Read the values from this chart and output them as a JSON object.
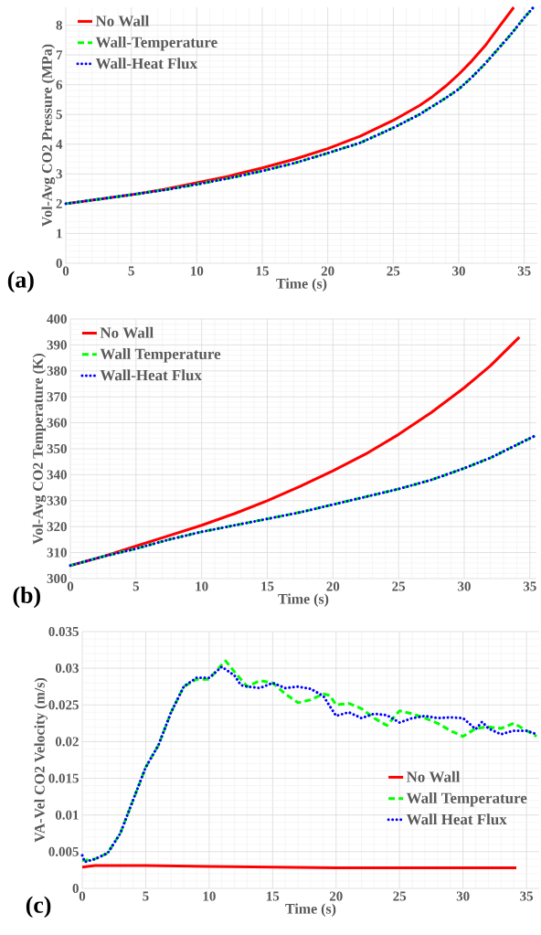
{
  "chart_data": [
    {
      "type": "line",
      "xlabel": "Time (s)",
      "ylabel": "Vol-Avg CO2 Pressure (MPa)",
      "annotations": [
        "(a)"
      ],
      "xlim": [
        0,
        36
      ],
      "xticks": [
        0,
        5,
        10,
        15,
        20,
        25,
        30,
        35
      ],
      "ylim": [
        0,
        8.6
      ],
      "yticks": [
        0,
        1,
        2,
        3,
        4,
        5,
        6,
        7,
        8
      ],
      "grid": true,
      "legend": "top left",
      "marker": "none",
      "series": [
        {
          "name": "No Wall",
          "color": "#ff0000",
          "line_style": "solid",
          "x": [
            0,
            2.5,
            5,
            7.5,
            10,
            12.5,
            15,
            17.5,
            20,
            22.5,
            25,
            27,
            28,
            29,
            30,
            31,
            32,
            33,
            34.2
          ],
          "values": [
            2.0,
            2.15,
            2.3,
            2.48,
            2.7,
            2.93,
            3.2,
            3.5,
            3.85,
            4.27,
            4.8,
            5.3,
            5.6,
            5.95,
            6.35,
            6.8,
            7.3,
            7.9,
            8.6
          ]
        },
        {
          "name": "Wall-Temperature",
          "color": "#00ff00",
          "line_style": "dashed",
          "x": [
            0,
            2.5,
            5,
            7.5,
            10,
            12.5,
            15,
            17.5,
            20,
            22.5,
            25,
            27,
            29,
            30,
            31,
            32,
            33,
            34,
            35,
            35.7
          ],
          "values": [
            2.0,
            2.15,
            2.3,
            2.46,
            2.65,
            2.86,
            3.1,
            3.37,
            3.7,
            4.05,
            4.55,
            5.0,
            5.55,
            5.85,
            6.25,
            6.7,
            7.2,
            7.7,
            8.25,
            8.6
          ]
        },
        {
          "name": "Wall-Heat Flux",
          "color": "#0000ff",
          "line_style": "dotted",
          "x": [
            0,
            2.5,
            5,
            7.5,
            10,
            12.5,
            15,
            17.5,
            20,
            22.5,
            25,
            27,
            29,
            30,
            31,
            32,
            33,
            34,
            35,
            35.7
          ],
          "values": [
            2.0,
            2.15,
            2.3,
            2.46,
            2.65,
            2.86,
            3.1,
            3.37,
            3.7,
            4.05,
            4.55,
            5.0,
            5.55,
            5.85,
            6.25,
            6.7,
            7.2,
            7.7,
            8.25,
            8.6
          ]
        }
      ]
    },
    {
      "type": "line",
      "xlabel": "Time (s)",
      "ylabel": "Vol-Avg CO2 Temperature (K)",
      "annotations": [
        "(b)"
      ],
      "xlim": [
        0,
        35.5
      ],
      "xticks": [
        0,
        5,
        10,
        15,
        20,
        25,
        30,
        35
      ],
      "ylim": [
        300,
        400
      ],
      "yticks": [
        300,
        310,
        320,
        330,
        340,
        350,
        360,
        370,
        380,
        390,
        400
      ],
      "grid": true,
      "legend": "top left",
      "marker": "none",
      "series": [
        {
          "name": "No Wall",
          "color": "#ff0000",
          "line_style": "solid",
          "x": [
            0,
            2.5,
            5,
            7.5,
            10,
            12.5,
            15,
            17.5,
            20,
            22.5,
            25,
            27.5,
            30,
            32,
            34.2
          ],
          "values": [
            305,
            308.5,
            312.5,
            316.5,
            320.5,
            325,
            330,
            335.5,
            341.5,
            348,
            355.5,
            364,
            373.5,
            382,
            393
          ]
        },
        {
          "name": "Wall Temperature",
          "color": "#00ff00",
          "line_style": "dashed",
          "x": [
            0,
            2.5,
            5,
            7.5,
            10,
            12.5,
            15,
            17.5,
            20,
            22.5,
            25,
            27.5,
            30,
            32,
            34,
            35.4
          ],
          "values": [
            305,
            308.5,
            311.5,
            315,
            318,
            320.5,
            323,
            325.5,
            328.5,
            331.5,
            334.5,
            338,
            342.5,
            346.5,
            351.5,
            355
          ]
        },
        {
          "name": "Wall-Heat Flux",
          "color": "#0000ff",
          "line_style": "dotted",
          "x": [
            0,
            2.5,
            5,
            7.5,
            10,
            12.5,
            15,
            17.5,
            20,
            22.5,
            25,
            27.5,
            30,
            32,
            34,
            35.4
          ],
          "values": [
            305,
            308.5,
            311.5,
            315,
            318,
            320.5,
            323,
            325.5,
            328.5,
            331.5,
            334.5,
            338,
            342.5,
            346.5,
            351.5,
            355
          ]
        }
      ]
    },
    {
      "type": "line",
      "xlabel": "Time (s)",
      "ylabel": "VA-Vel CO2 Velocity (m/s)",
      "annotations": [
        "(c)"
      ],
      "xlim": [
        0,
        36
      ],
      "xticks": [
        0,
        5,
        10,
        15,
        20,
        25,
        30,
        35
      ],
      "ylim": [
        0,
        0.035
      ],
      "yticks": [
        0,
        0.005,
        0.01,
        0.015,
        0.02,
        0.025,
        0.03,
        0.035
      ],
      "grid": true,
      "legend": "right",
      "marker": "none",
      "series": [
        {
          "name": "No Wall",
          "color": "#ff0000",
          "line_style": "solid",
          "x": [
            0,
            1,
            5,
            10,
            15,
            20,
            25,
            30,
            34.2
          ],
          "values": [
            0.0029,
            0.0031,
            0.0031,
            0.003,
            0.0029,
            0.0028,
            0.0028,
            0.0028,
            0.0028
          ]
        },
        {
          "name": "Wall Temperature",
          "color": "#00ff00",
          "line_style": "dashed",
          "x": [
            0,
            1,
            2,
            3,
            4,
            5,
            6,
            7,
            8,
            9,
            10,
            11,
            11.3,
            12,
            13,
            14,
            15,
            16,
            17,
            18,
            19,
            19.5,
            20,
            21,
            22,
            23,
            24,
            25,
            26,
            27,
            28,
            29,
            30,
            31,
            32,
            33,
            34,
            35,
            35.8
          ],
          "values": [
            0.0038,
            0.004,
            0.0048,
            0.0075,
            0.012,
            0.0165,
            0.0195,
            0.024,
            0.0275,
            0.0285,
            0.0285,
            0.0305,
            0.031,
            0.0295,
            0.0275,
            0.0283,
            0.028,
            0.0265,
            0.0253,
            0.0257,
            0.0265,
            0.0263,
            0.025,
            0.0252,
            0.0245,
            0.0232,
            0.0222,
            0.0242,
            0.0238,
            0.0232,
            0.0225,
            0.0215,
            0.0207,
            0.0218,
            0.022,
            0.0218,
            0.0225,
            0.0215,
            0.0207
          ]
        },
        {
          "name": "Wall Heat Flux",
          "color": "#0000ff",
          "line_style": "dotted",
          "x": [
            0,
            0.2,
            1,
            2,
            3,
            4,
            5,
            6,
            7,
            8,
            9,
            10,
            11,
            12,
            12.5,
            13,
            14,
            15,
            16,
            17,
            18,
            19,
            20,
            21,
            22,
            23,
            24,
            25,
            26,
            27,
            28,
            29,
            30,
            31,
            31.5,
            32,
            33,
            34,
            35,
            35.8
          ],
          "values": [
            0.0045,
            0.0036,
            0.004,
            0.0048,
            0.0075,
            0.012,
            0.0165,
            0.0195,
            0.024,
            0.0275,
            0.0287,
            0.0287,
            0.0302,
            0.029,
            0.0277,
            0.0275,
            0.0273,
            0.028,
            0.0273,
            0.0275,
            0.0272,
            0.0262,
            0.0235,
            0.024,
            0.0232,
            0.0238,
            0.0236,
            0.0226,
            0.0232,
            0.0235,
            0.0232,
            0.0233,
            0.0232,
            0.0217,
            0.0227,
            0.0218,
            0.021,
            0.0215,
            0.0215,
            0.021
          ]
        }
      ]
    }
  ]
}
